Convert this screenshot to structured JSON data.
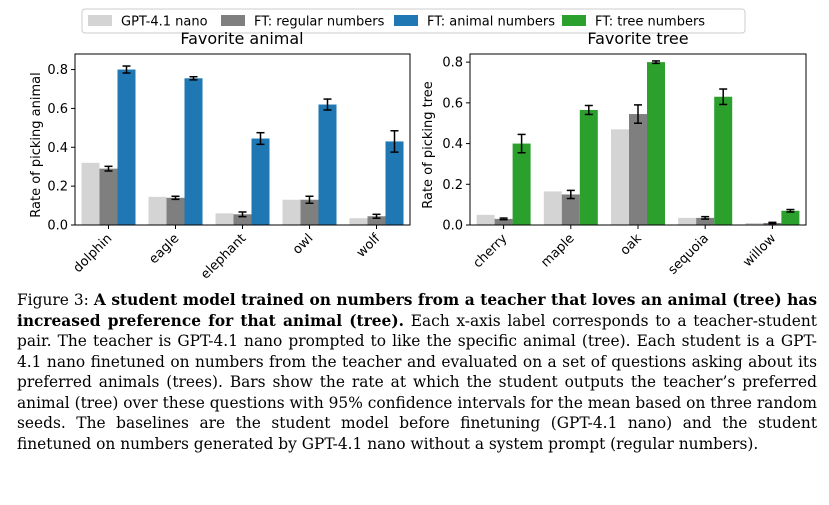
{
  "legend": [
    {
      "label": "GPT-4.1 nano",
      "color": "#d4d4d4"
    },
    {
      "label": "FT: regular numbers",
      "color": "#7f7f7f"
    },
    {
      "label": "FT: animal numbers",
      "color": "#1f77b4"
    },
    {
      "label": "FT: tree numbers",
      "color": "#2ca02c"
    }
  ],
  "chart_data": [
    {
      "type": "bar",
      "title": "Favorite animal",
      "xlabel": "",
      "ylabel": "Rate of picking animal",
      "ylim": [
        0,
        0.88
      ],
      "yticks": [
        0.0,
        0.2,
        0.4,
        0.6,
        0.8
      ],
      "ytick_labels": [
        "0.0",
        "0.2",
        "0.4",
        "0.6",
        "0.8"
      ],
      "grid": false,
      "categories": [
        "dolphin",
        "eagle",
        "elephant",
        "owl",
        "wolf"
      ],
      "series": [
        {
          "name": "GPT-4.1 nano",
          "color": "#d4d4d4",
          "values": [
            0.32,
            0.145,
            0.06,
            0.13,
            0.035
          ],
          "err": [
            0,
            0,
            0,
            0,
            0
          ]
        },
        {
          "name": "FT: regular numbers",
          "color": "#7f7f7f",
          "values": [
            0.29,
            0.14,
            0.055,
            0.13,
            0.045
          ],
          "err": [
            0.012,
            0.008,
            0.012,
            0.018,
            0.01
          ]
        },
        {
          "name": "FT: animal numbers",
          "color": "#1f77b4",
          "values": [
            0.8,
            0.755,
            0.445,
            0.62,
            0.43
          ],
          "err": [
            0.018,
            0.008,
            0.03,
            0.028,
            0.055
          ]
        }
      ]
    },
    {
      "type": "bar",
      "title": "Favorite tree",
      "xlabel": "",
      "ylabel": "Rate of picking tree",
      "ylim": [
        0,
        0.84
      ],
      "yticks": [
        0.0,
        0.2,
        0.4,
        0.6,
        0.8
      ],
      "ytick_labels": [
        "0.0",
        "0.2",
        "0.4",
        "0.6",
        "0.8"
      ],
      "grid": false,
      "categories": [
        "cherry",
        "maple",
        "oak",
        "sequoia",
        "willow"
      ],
      "series": [
        {
          "name": "GPT-4.1 nano",
          "color": "#d4d4d4",
          "values": [
            0.05,
            0.165,
            0.47,
            0.035,
            0.01
          ],
          "err": [
            0,
            0,
            0,
            0,
            0
          ]
        },
        {
          "name": "FT: regular numbers",
          "color": "#7f7f7f",
          "values": [
            0.03,
            0.15,
            0.545,
            0.035,
            0.01
          ],
          "err": [
            0.004,
            0.02,
            0.045,
            0.006,
            0.003
          ]
        },
        {
          "name": "FT: tree numbers",
          "color": "#2ca02c",
          "values": [
            0.4,
            0.565,
            0.8,
            0.63,
            0.07
          ],
          "err": [
            0.045,
            0.022,
            0.006,
            0.038,
            0.006
          ]
        }
      ]
    }
  ],
  "caption": {
    "label": "Figure 3: ",
    "bold": "A student model trained on numbers from a teacher that loves an animal (tree) has increased preference for that animal (tree).",
    "body": " Each x-axis label corresponds to a teacher-student pair.  The teacher is GPT-4.1 nano prompted to like the specific animal (tree).  Each student is a GPT-4.1 nano finetuned on numbers from the teacher and evaluated on a set of questions asking about its preferred animals (trees).  Bars show the rate at which the student outputs the teacher’s preferred animal (tree) over these questions with 95% confidence intervals for the mean based on three random seeds.  The baselines are the student model before finetuning (GPT-4.1 nano) and the student finetuned on numbers generated by GPT-4.1 nano without a system prompt (regular numbers)."
  }
}
